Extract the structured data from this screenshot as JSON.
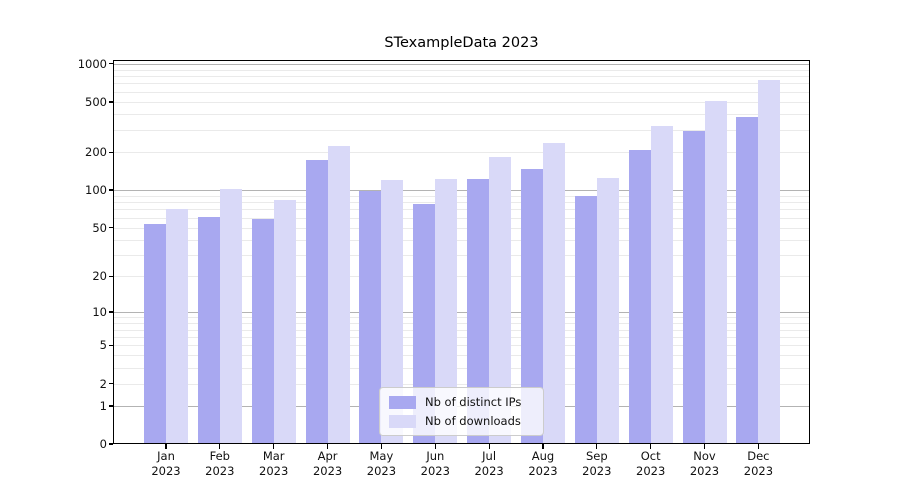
{
  "chart_data": {
    "type": "bar",
    "title": "STexampleData 2023",
    "categories": [
      "Jan",
      "Feb",
      "Mar",
      "Apr",
      "May",
      "Jun",
      "Jul",
      "Aug",
      "Sep",
      "Oct",
      "Nov",
      "Dec"
    ],
    "category_year": "2023",
    "series": [
      {
        "name": "Nb of distinct IPs",
        "color": "#a8a8f0",
        "values": [
          54,
          61,
          59,
          173,
          99,
          78,
          123,
          146,
          90,
          210,
          293,
          378
        ]
      },
      {
        "name": "Nb of downloads",
        "color": "#d9d9f8",
        "values": [
          70,
          102,
          84,
          223,
          120,
          123,
          184,
          237,
          124,
          321,
          509,
          747
        ]
      }
    ],
    "y_axis": {
      "scale": "log1p",
      "tick_values": [
        0,
        1,
        2,
        5,
        10,
        20,
        50,
        100,
        200,
        500,
        1000
      ],
      "tick_labels": [
        "0",
        "1",
        "2",
        "5",
        "10",
        "20",
        "50",
        "100",
        "200",
        "500",
        "1000"
      ],
      "ylim": [
        0,
        1000
      ]
    },
    "grid": {
      "major_values": [
        1,
        10,
        100,
        1000
      ],
      "major_color": "#b3b3b3",
      "minor_color": "#eaeaea",
      "minor_on": true
    },
    "legend": {
      "position": "lower center",
      "entries": [
        "Nb of distinct IPs",
        "Nb of downloads"
      ]
    },
    "colors": {
      "background": "#ffffff",
      "axis": "#000000",
      "text": "#111111"
    }
  }
}
